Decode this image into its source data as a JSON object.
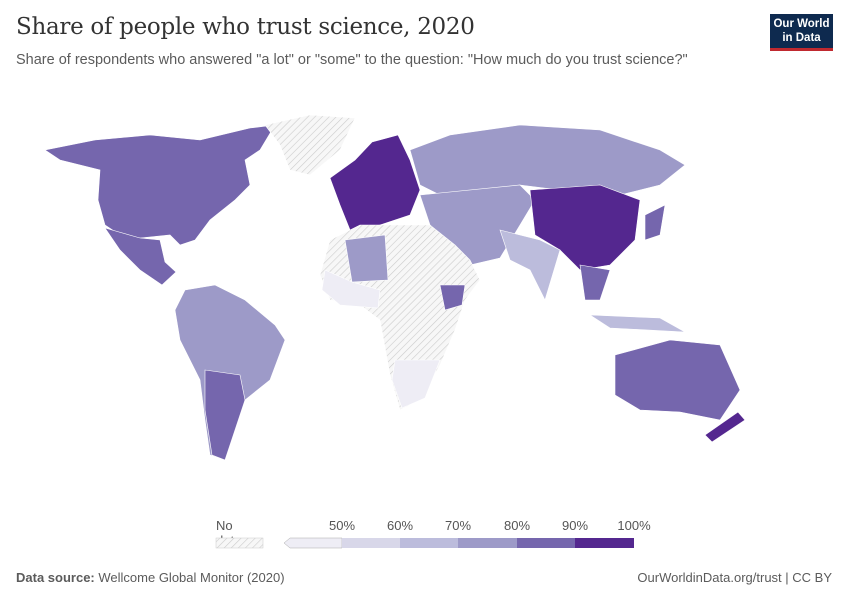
{
  "header": {
    "title": "Share of people who trust science, 2020",
    "subtitle": "Share of respondents who answered \"a lot\" or \"some\" to the question: \"How much do you trust science?\"",
    "logo": "Our World in Data"
  },
  "legend": {
    "no_data": "No data",
    "ticks": [
      "50%",
      "60%",
      "70%",
      "80%",
      "90%",
      "100%"
    ],
    "colors": {
      "no_data": "hatch",
      "lt50": "#eeedf5",
      "b50_60": "#d8d7e9",
      "b60_70": "#bcbcdc",
      "b70_80": "#9d9ac8",
      "b80_90": "#7566ad",
      "b90_100": "#54278f"
    }
  },
  "footer": {
    "source_label": "Data source:",
    "source": "Wellcome Global Monitor (2020)",
    "link": "OurWorldinData.org/trust | CC BY"
  }
}
